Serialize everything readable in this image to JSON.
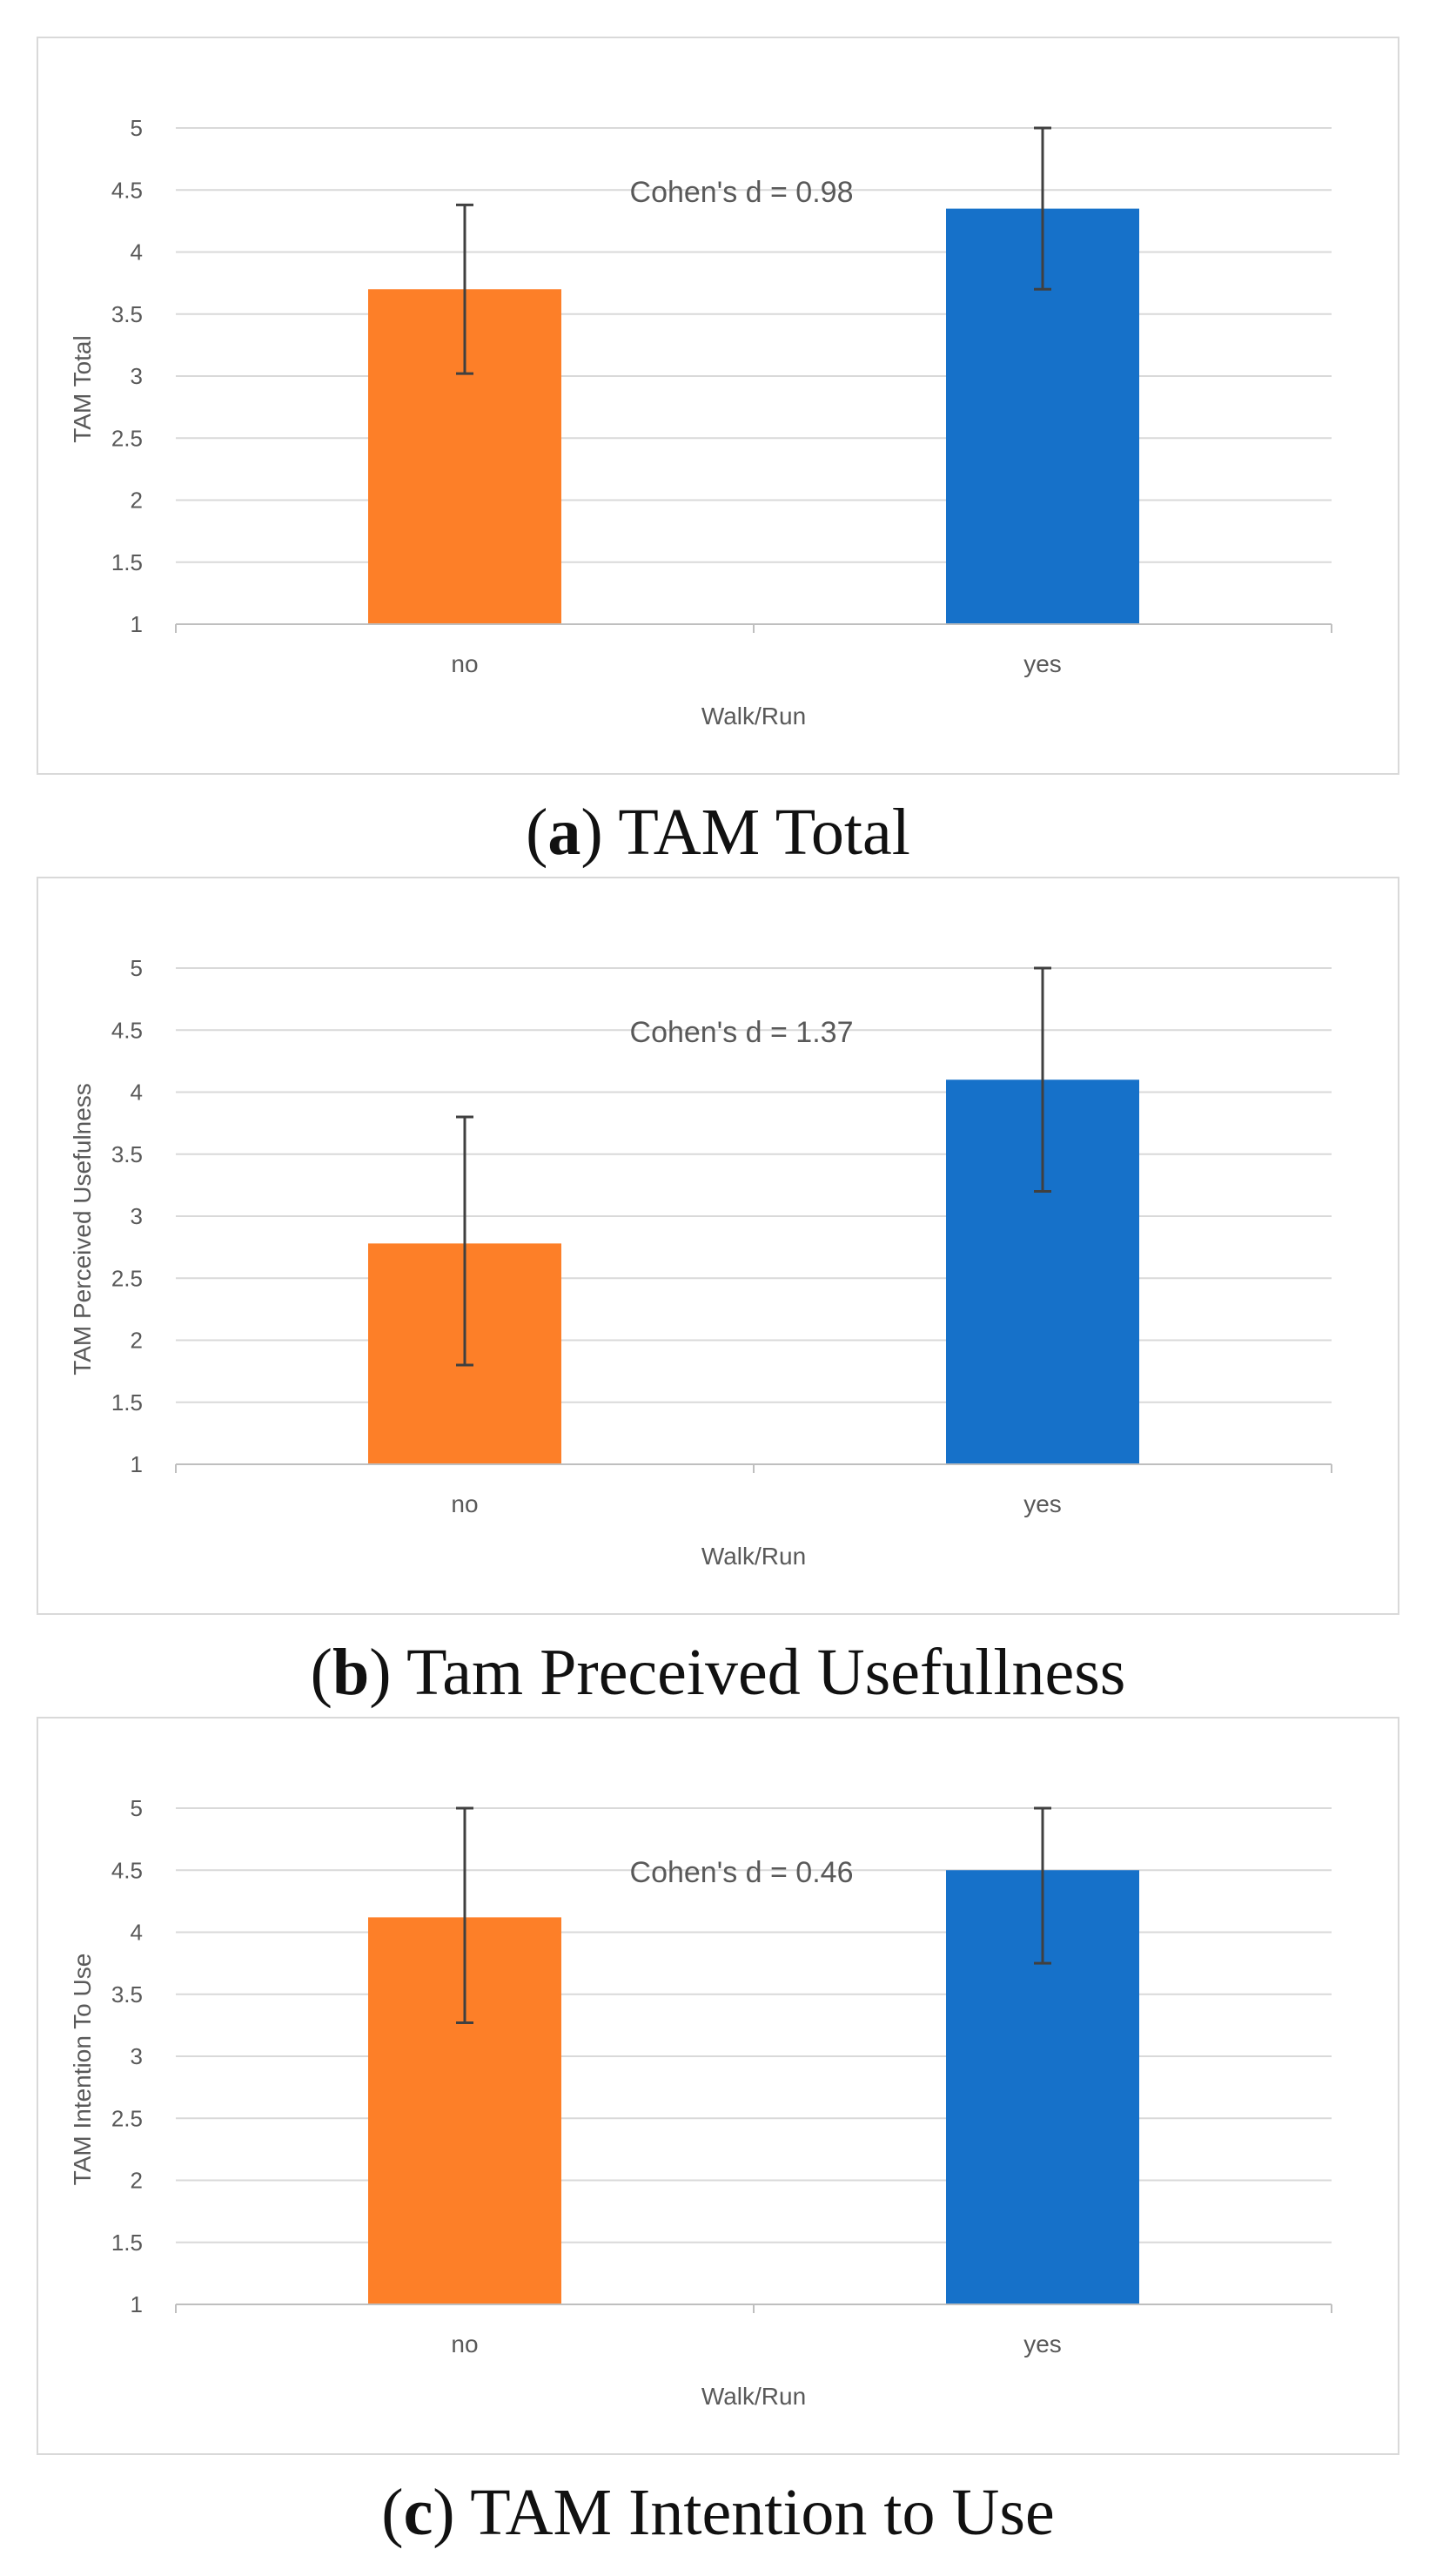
{
  "colors": {
    "no": "#fd7f28",
    "yes": "#1671c9"
  },
  "chart_data": [
    {
      "type": "bar",
      "caption_letter": "a",
      "caption_text": "TAM Total",
      "categories": [
        "no",
        "yes"
      ],
      "values": [
        3.7,
        4.35
      ],
      "error_low": [
        3.02,
        3.7
      ],
      "error_high": [
        4.38,
        5.0
      ],
      "xlabel": "Walk/Run",
      "ylabel": "TAM Total",
      "ylim": [
        1,
        5
      ],
      "yticks": [
        "1",
        "1.5",
        "2",
        "2.5",
        "3",
        "3.5",
        "4",
        "4.5",
        "5"
      ],
      "annotation": "Cohen's d = 0.98",
      "grid": true
    },
    {
      "type": "bar",
      "caption_letter": "b",
      "caption_text": "Tam Preceived Usefullness",
      "categories": [
        "no",
        "yes"
      ],
      "values": [
        2.78,
        4.1
      ],
      "error_low": [
        1.8,
        3.2
      ],
      "error_high": [
        3.8,
        5.0
      ],
      "xlabel": "Walk/Run",
      "ylabel": "TAM Perceived Usefulness",
      "ylim": [
        1,
        5
      ],
      "yticks": [
        "1",
        "1.5",
        "2",
        "2.5",
        "3",
        "3.5",
        "4",
        "4.5",
        "5"
      ],
      "annotation": "Cohen's d = 1.37",
      "grid": true
    },
    {
      "type": "bar",
      "caption_letter": "c",
      "caption_text": "TAM Intention to Use",
      "categories": [
        "no",
        "yes"
      ],
      "values": [
        4.12,
        4.5
      ],
      "error_low": [
        3.27,
        3.75
      ],
      "error_high": [
        5.0,
        5.0
      ],
      "xlabel": "Walk/Run",
      "ylabel": "TAM Intention To Use",
      "ylim": [
        1,
        5
      ],
      "yticks": [
        "1",
        "1.5",
        "2",
        "2.5",
        "3",
        "3.5",
        "4",
        "4.5",
        "5"
      ],
      "annotation": "Cohen's d = 0.46",
      "grid": true
    }
  ]
}
